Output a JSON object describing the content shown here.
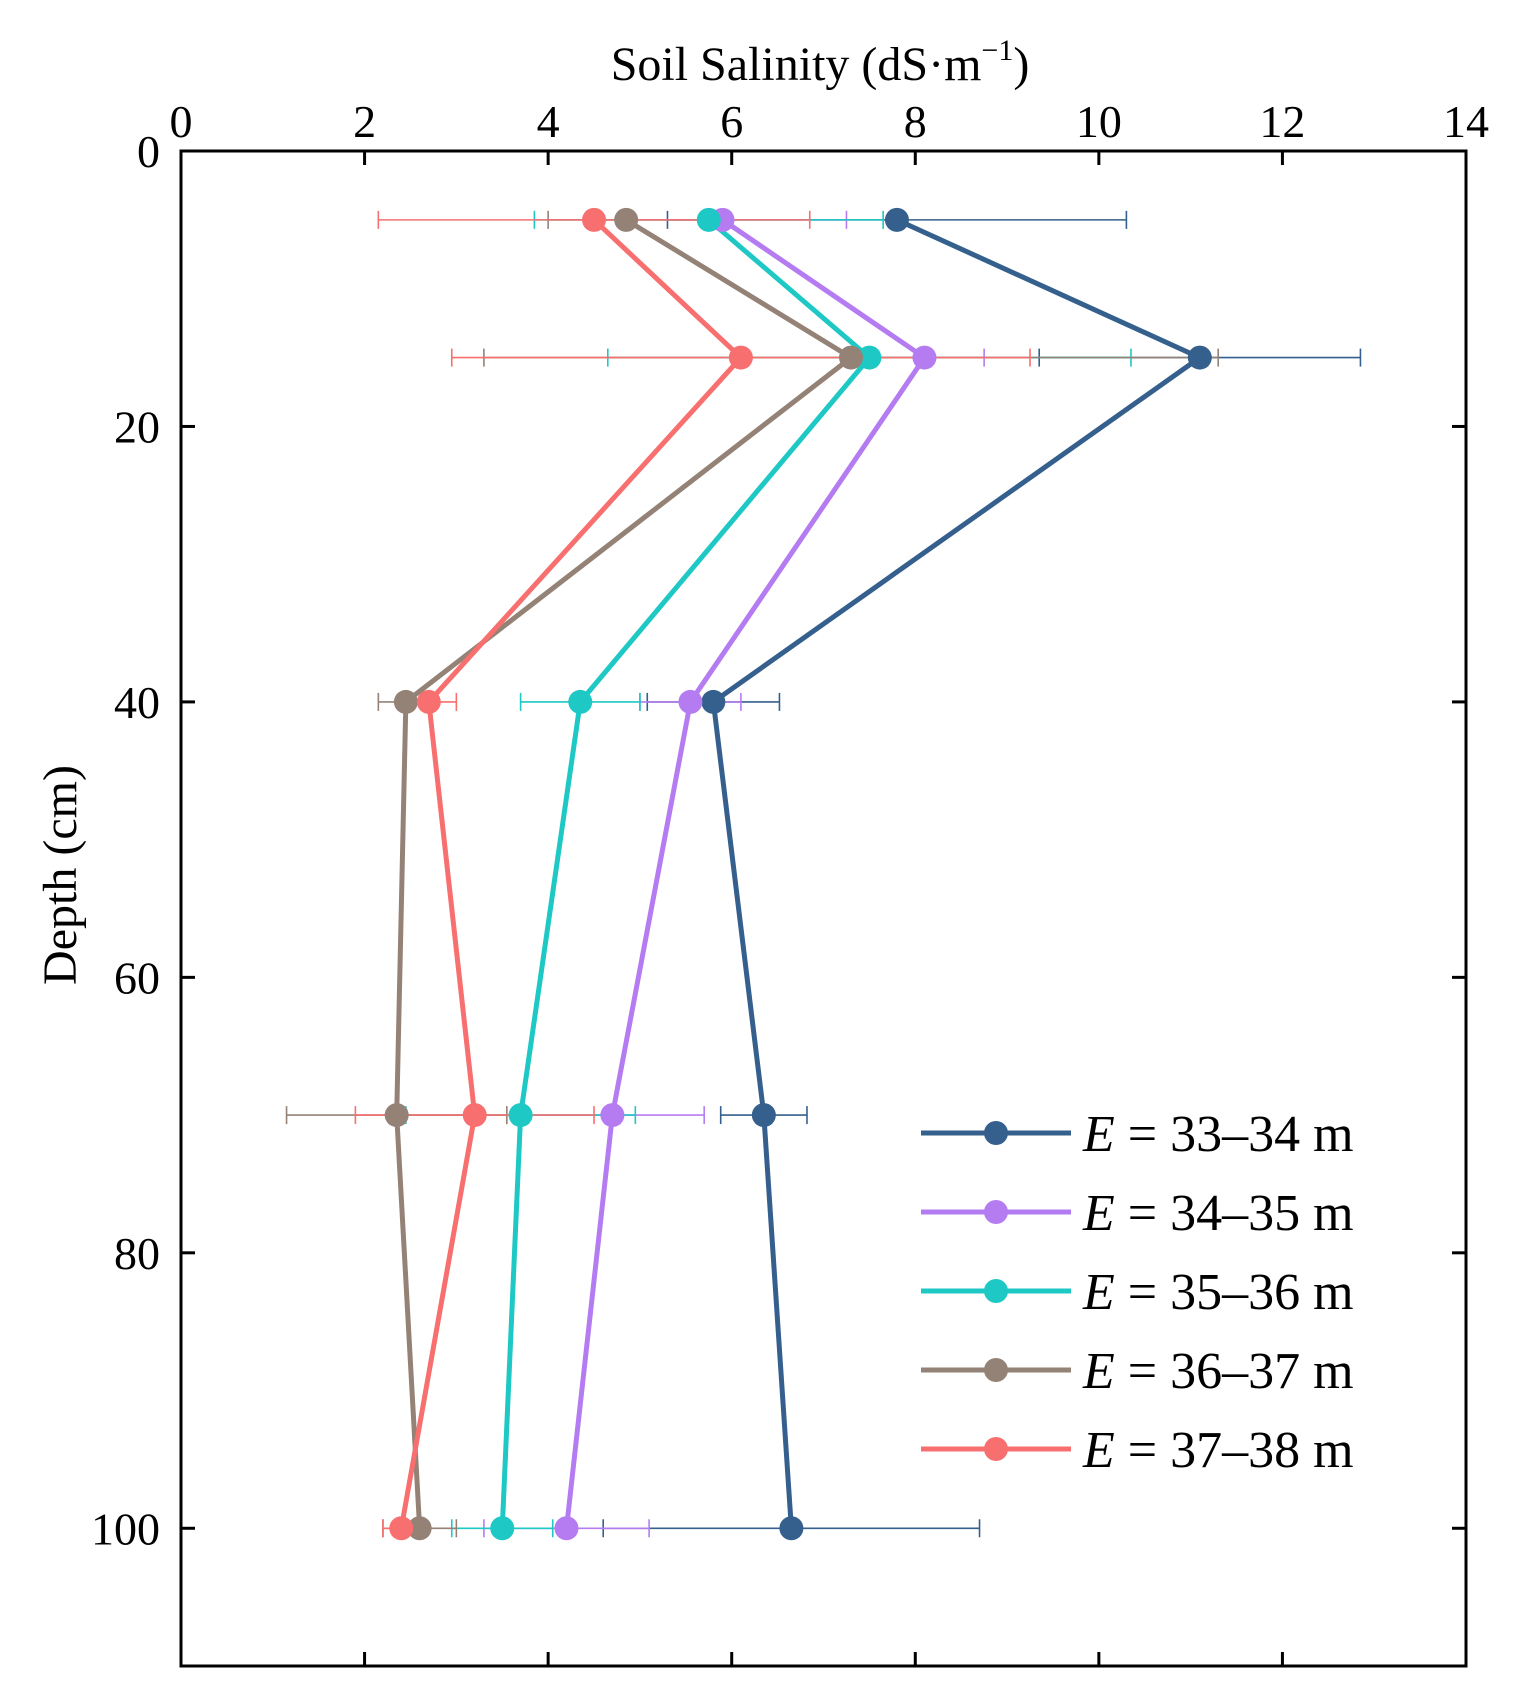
{
  "chart_data": {
    "type": "line",
    "orientation": "depth-profile",
    "title": "",
    "xlabel": "Soil Salinity (dS·m",
    "xlabel_sup": "−1",
    "xlabel_tail": ")",
    "ylabel": "Depth (cm)",
    "xlim": [
      0,
      14
    ],
    "ylim": [
      0,
      110
    ],
    "y_inverted": true,
    "x_axis_position": "top",
    "x_ticks": [
      0,
      2,
      4,
      6,
      8,
      10,
      12,
      14
    ],
    "y_ticks": [
      0,
      20,
      40,
      60,
      80,
      100
    ],
    "x_tick_labels": [
      "0",
      "2",
      "4",
      "6",
      "8",
      "10",
      "12",
      "14"
    ],
    "y_tick_labels": [
      "0",
      "20",
      "40",
      "60",
      "80",
      "100"
    ],
    "depths": [
      5,
      15,
      40,
      70,
      100
    ],
    "legend_position": "bottom-right",
    "series": [
      {
        "name": "E = 33–34 m",
        "legend_var": "E",
        "legend_rest": " = 33–34 m",
        "color": "#355f8d",
        "values": [
          7.8,
          11.1,
          5.8,
          6.35,
          6.65
        ],
        "errors": [
          2.5,
          1.75,
          0.72,
          0.47,
          2.05
        ]
      },
      {
        "name": "E = 34–35 m",
        "legend_var": "E",
        "legend_rest": " = 34–35 m",
        "color": "#b57cf2",
        "values": [
          5.9,
          8.1,
          5.55,
          4.7,
          4.2
        ],
        "errors": [
          1.35,
          0.65,
          0.55,
          1.0,
          0.9
        ]
      },
      {
        "name": "E = 35–36 m",
        "legend_var": "E",
        "legend_rest": " = 35–36 m",
        "color": "#1ec8c4",
        "values": [
          5.75,
          7.5,
          4.35,
          3.7,
          3.5
        ],
        "errors": [
          1.9,
          2.85,
          0.65,
          1.25,
          0.55
        ]
      },
      {
        "name": "E = 36–37 m",
        "legend_var": "E",
        "legend_rest": " = 36–37 m",
        "color": "#948276",
        "values": [
          4.85,
          7.3,
          2.45,
          2.35,
          2.6
        ],
        "errors": [
          0.85,
          4.0,
          0.3,
          1.2,
          0.4
        ]
      },
      {
        "name": "E = 37–38 m",
        "legend_var": "E",
        "legend_rest": " = 37–38 m",
        "color": "#f76f6f",
        "values": [
          4.5,
          6.1,
          2.7,
          3.2,
          2.4
        ],
        "errors": [
          2.35,
          3.15,
          0.3,
          1.3,
          0.2
        ]
      }
    ]
  }
}
